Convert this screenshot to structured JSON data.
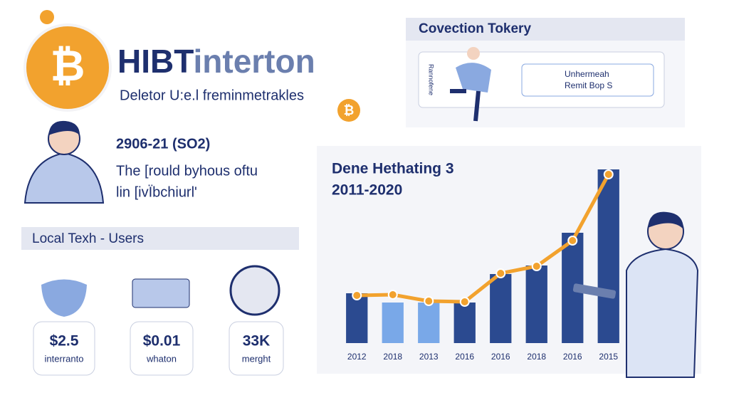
{
  "header": {
    "title_part1": "HIBT",
    "title_part2": "interton",
    "subtitle": "Deletor U:e.l freminmetrakles"
  },
  "intro": {
    "date": "2906-21 (SO2)",
    "lines": [
      "The [rould byhous oftu",
      "lin [ivÏbchiurl'"
    ]
  },
  "users": {
    "heading": "Local Texh - Users",
    "stats": [
      {
        "value": "$2.5",
        "label": "interranto"
      },
      {
        "value": "$0.01",
        "label": "whaton"
      },
      {
        "value": "33K",
        "label": "merght"
      }
    ]
  },
  "panel": {
    "heading": "Covection Tokery",
    "side_label": "Rannofene",
    "card_lines": [
      "Unhermeah",
      "Remit Bop S"
    ]
  },
  "chart_data": {
    "type": "bar_line",
    "title": "Dene Hethating 3",
    "subtitle": "2011-2020",
    "categories": [
      "2012",
      "2018",
      "2013",
      "2016",
      "2016",
      "2018",
      "2016",
      "2015"
    ],
    "series": [
      {
        "type": "bar",
        "colors": [
          "#2b4a90",
          "#79a8e8",
          "#79a8e8",
          "#2b4a90",
          "#2b4a90",
          "#2b4a90",
          "#2b4a90",
          "#2b4a90"
        ],
        "values": [
          70,
          57,
          57,
          57,
          97,
          109,
          155,
          244
        ]
      },
      {
        "type": "line",
        "color": "#f2a22e",
        "values": [
          67,
          68,
          59,
          58,
          98,
          108,
          144,
          237
        ]
      }
    ],
    "ylim": [
      0,
      250
    ]
  }
}
